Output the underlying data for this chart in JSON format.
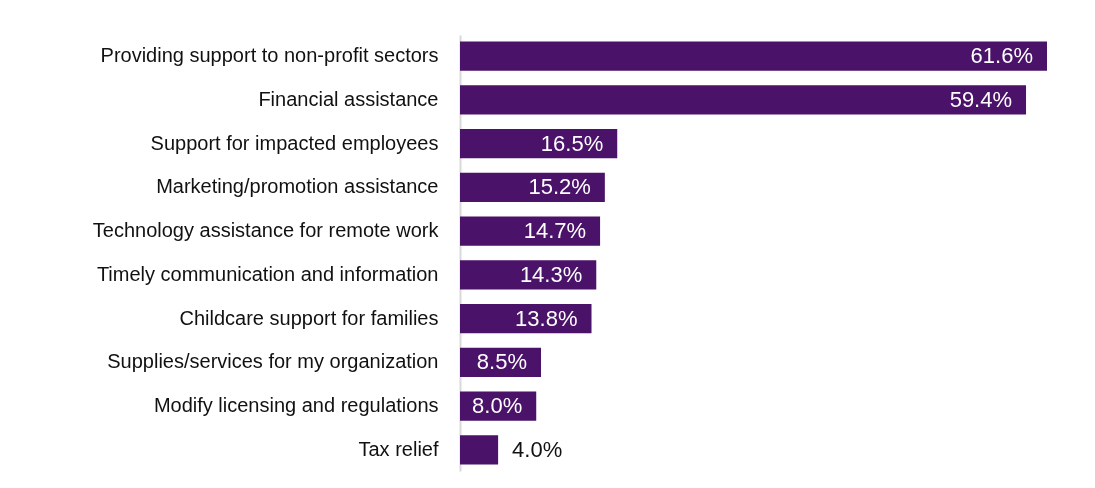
{
  "chart_data": {
    "type": "bar",
    "orientation": "horizontal",
    "categories": [
      "Providing support to non-profit sectors",
      "Financial assistance",
      "Support for impacted employees",
      "Marketing/promotion assistance",
      "Technology assistance for remote work",
      "Timely communication and information",
      "Childcare support for families",
      "Supplies/services for my organization",
      "Modify licensing and regulations",
      "Tax relief"
    ],
    "values": [
      61.6,
      59.4,
      16.5,
      15.2,
      14.7,
      14.3,
      13.8,
      8.5,
      8.0,
      4.0
    ],
    "value_labels": [
      "61.6%",
      "59.4%",
      "16.5%",
      "15.2%",
      "14.7%",
      "14.3%",
      "13.8%",
      "8.5%",
      "8.0%",
      "4.0%"
    ],
    "color": "#4a1268",
    "tick_labels": "y"
  }
}
